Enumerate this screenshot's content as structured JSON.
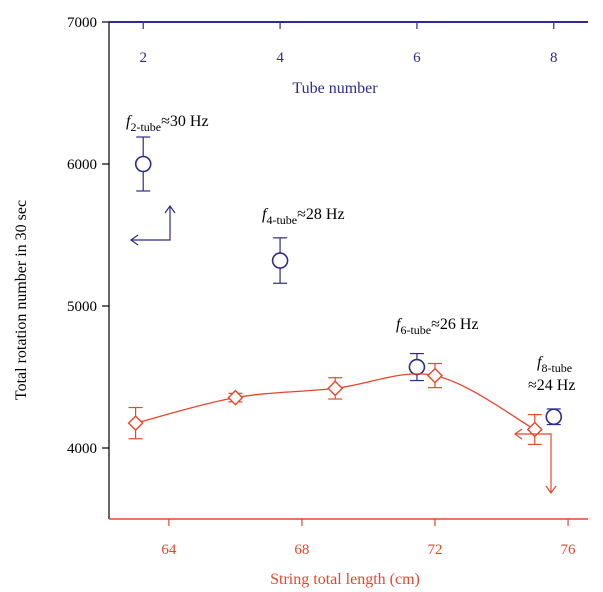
{
  "chart_data": {
    "type": "scatter",
    "left_axis": {
      "label": "Total rotation number in 30 sec",
      "range": [
        3500,
        7000
      ],
      "ticks": [
        4000,
        5000,
        6000,
        7000
      ],
      "color": "#000000"
    },
    "top_axis": {
      "label": "Tube number",
      "range": [
        1.5,
        8.5
      ],
      "ticks": [
        2,
        4,
        6,
        8
      ],
      "color": "#2e2b8c"
    },
    "bottom_axis": {
      "label": "String total length (cm)",
      "range": [
        62.2,
        76.6
      ],
      "ticks": [
        64,
        68,
        72,
        76
      ],
      "color": "#e8452b"
    },
    "series": [
      {
        "marker": "circle",
        "axis": "top",
        "color": "#2e2b8c",
        "points": [
          {
            "x": 2,
            "y": 6000,
            "err": 190
          },
          {
            "x": 4,
            "y": 5320,
            "err": 160
          },
          {
            "x": 6,
            "y": 4570,
            "err": 95
          },
          {
            "x": 8,
            "y": 4220,
            "err": 55
          }
        ]
      },
      {
        "marker": "diamond",
        "axis": "bottom",
        "color": "#e8452b",
        "points": [
          {
            "x": 63,
            "y": 4175,
            "err": 110
          },
          {
            "x": 66,
            "y": 4355,
            "err": 30
          },
          {
            "x": 69,
            "y": 4420,
            "err": 75
          },
          {
            "x": 72,
            "y": 4510,
            "err": 85
          },
          {
            "x": 75,
            "y": 4130,
            "err": 105
          }
        ]
      }
    ],
    "annotations": [
      {
        "f": "f",
        "sub": "2-tube",
        "text": "≈30 Hz"
      },
      {
        "f": "f",
        "sub": "4-tube",
        "text": "≈28 Hz"
      },
      {
        "f": "f",
        "sub": "6-tube",
        "text": "≈26 Hz"
      },
      {
        "f": "f",
        "sub": "8-tube",
        "text": "≈24 Hz"
      }
    ]
  }
}
